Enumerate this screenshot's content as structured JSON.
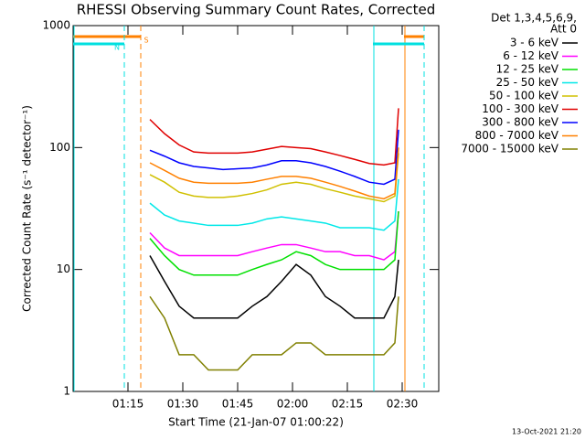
{
  "chart_data": {
    "type": "line",
    "title": "RHESSI Observing Summary Count Rates, Corrected",
    "x_label": "Start Time (21-Jan-07 01:00:22)",
    "y_label": "Corrected Count Rate (s⁻¹ detector⁻¹)",
    "legend_title": [
      "Det 1,3,4,5,6,9,",
      "Att 0"
    ],
    "footer": "13-Oct-2021 21:20",
    "log_y": true,
    "legend": "outside-right",
    "xlim": [
      0,
      100
    ],
    "xticks": [
      {
        "value": 15,
        "label": "01:15"
      },
      {
        "value": 30,
        "label": "01:30"
      },
      {
        "value": 45,
        "label": "01:45"
      },
      {
        "value": 60,
        "label": "02:00"
      },
      {
        "value": 75,
        "label": "02:15"
      },
      {
        "value": 90,
        "label": "02:30"
      }
    ],
    "ylim": [
      1,
      1000
    ],
    "yticks": [
      1,
      10,
      100,
      1000
    ],
    "intervals": [
      {
        "name": "S",
        "color": "#ff8000",
        "ranges": [
          [
            0,
            18.5
          ],
          [
            90.5,
            96
          ]
        ]
      },
      {
        "name": "N",
        "color": "#00e0e0",
        "ranges": [
          [
            0,
            14
          ],
          [
            82,
            96
          ]
        ]
      }
    ],
    "x": [
      21,
      25,
      29,
      33,
      37,
      41,
      45,
      49,
      53,
      57,
      61,
      65,
      69,
      73,
      77,
      81,
      85,
      88,
      89
    ],
    "series": [
      {
        "name": "3 - 6 keV",
        "color": "#000000",
        "values": [
          13,
          8,
          5,
          4,
          4,
          4,
          4,
          5,
          6,
          8,
          11,
          9,
          6,
          5,
          4,
          4,
          4,
          6,
          12
        ]
      },
      {
        "name": "6 - 12 keV",
        "color": "#ff00ff",
        "values": [
          20,
          15,
          13,
          13,
          13,
          13,
          13,
          14,
          15,
          16,
          16,
          15,
          14,
          14,
          13,
          13,
          12,
          14,
          30
        ]
      },
      {
        "name": "12 - 25 keV",
        "color": "#00e000",
        "values": [
          18,
          13,
          10,
          9,
          9,
          9,
          9,
          10,
          11,
          12,
          14,
          13,
          11,
          10,
          10,
          10,
          10,
          12,
          30
        ]
      },
      {
        "name": "25 - 50 keV",
        "color": "#00e8e8",
        "values": [
          35,
          28,
          25,
          24,
          23,
          23,
          23,
          24,
          26,
          27,
          26,
          25,
          24,
          22,
          22,
          22,
          21,
          25,
          55
        ]
      },
      {
        "name": "50 - 100 keV",
        "color": "#d0c000",
        "values": [
          60,
          52,
          43,
          40,
          39,
          39,
          40,
          42,
          45,
          50,
          52,
          50,
          46,
          43,
          40,
          38,
          36,
          40,
          90
        ]
      },
      {
        "name": "100 - 300 keV",
        "color": "#e00000",
        "values": [
          170,
          130,
          105,
          92,
          90,
          90,
          90,
          92,
          97,
          102,
          100,
          98,
          92,
          86,
          80,
          74,
          72,
          75,
          210
        ]
      },
      {
        "name": "300 - 800 keV",
        "color": "#0000ff",
        "values": [
          95,
          85,
          75,
          70,
          68,
          66,
          67,
          68,
          72,
          78,
          78,
          75,
          70,
          64,
          58,
          52,
          50,
          55,
          140
        ]
      },
      {
        "name": "800 - 7000 keV",
        "color": "#ff8000",
        "values": [
          75,
          65,
          56,
          52,
          51,
          51,
          51,
          52,
          55,
          58,
          58,
          56,
          52,
          48,
          44,
          40,
          38,
          42,
          100
        ]
      },
      {
        "name": "7000 - 15000 keV",
        "color": "#808000",
        "values": [
          6,
          4,
          2,
          2,
          1.5,
          1.5,
          1.5,
          2,
          2,
          2,
          2.5,
          2.5,
          2,
          2,
          2,
          2,
          2,
          2.5,
          6
        ]
      }
    ]
  }
}
